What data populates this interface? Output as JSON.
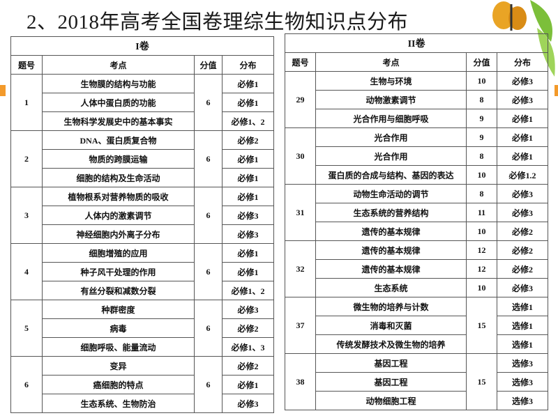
{
  "title": "2、2018年高考全国卷理综生物知识点分布",
  "tables": [
    {
      "title": "I卷",
      "headers": [
        "题号",
        "考点",
        "分值",
        "分布"
      ],
      "groups": [
        {
          "number": "1",
          "score": "6",
          "rows": [
            {
              "topic": "生物膜的结构与功能",
              "distribution": "必修1"
            },
            {
              "topic": "人体中蛋白质的功能",
              "distribution": "必修1"
            },
            {
              "topic": "生物科学发展史中的基本事实",
              "distribution": "必修1、2"
            }
          ]
        },
        {
          "number": "2",
          "score": "6",
          "rows": [
            {
              "topic": "DNA、蛋白质复合物",
              "distribution": "必修2"
            },
            {
              "topic": "物质的跨膜运输",
              "distribution": "必修1"
            },
            {
              "topic": "细胞的结构及生命活动",
              "distribution": "必修1"
            }
          ]
        },
        {
          "number": "3",
          "score": "6",
          "rows": [
            {
              "topic": "植物根系对营养物质的吸收",
              "distribution": "必修1"
            },
            {
              "topic": "人体内的激素调节",
              "distribution": "必修3"
            },
            {
              "topic": "神经细胞内外离子分布",
              "distribution": "必修3"
            }
          ]
        },
        {
          "number": "4",
          "score": "6",
          "rows": [
            {
              "topic": "细胞增殖的应用",
              "distribution": "必修1"
            },
            {
              "topic": "种子风干处理的作用",
              "distribution": "必修1"
            },
            {
              "topic": "有丝分裂和减数分裂",
              "distribution": "必修1、2"
            }
          ]
        },
        {
          "number": "5",
          "score": "6",
          "rows": [
            {
              "topic": "种群密度",
              "distribution": "必修3"
            },
            {
              "topic": "病毒",
              "distribution": "必修2"
            },
            {
              "topic": "细胞呼吸、能量流动",
              "distribution": "必修1、3"
            }
          ]
        },
        {
          "number": "6",
          "score": "6",
          "rows": [
            {
              "topic": "变异",
              "distribution": "必修2"
            },
            {
              "topic": "癌细胞的特点",
              "distribution": "必修1"
            },
            {
              "topic": "生态系统、生物防治",
              "distribution": "必修3"
            }
          ]
        }
      ]
    },
    {
      "title": "II卷",
      "headers": [
        "题号",
        "考点",
        "分值",
        "分布"
      ],
      "groups": [
        {
          "number": "29",
          "rows": [
            {
              "topic": "生物与环境",
              "score": "10",
              "distribution": "必修3"
            },
            {
              "topic": "动物激素调节",
              "score": "8",
              "distribution": "必修3"
            },
            {
              "topic": "光合作用与细胞呼吸",
              "score": "9",
              "distribution": "必修1"
            }
          ]
        },
        {
          "number": "30",
          "rows": [
            {
              "topic": "光合作用",
              "score": "9",
              "distribution": "必修1"
            },
            {
              "topic": "光合作用",
              "score": "8",
              "distribution": "必修1"
            },
            {
              "topic": "蛋白质的合成与结构、基因的表达",
              "score": "10",
              "distribution": "必修1.2"
            }
          ]
        },
        {
          "number": "31",
          "rows": [
            {
              "topic": "动物生命活动的调节",
              "score": "8",
              "distribution": "必修3"
            },
            {
              "topic": "生态系统的营养结构",
              "score": "11",
              "distribution": "必修3"
            },
            {
              "topic": "遗传的基本规律",
              "score": "10",
              "distribution": "必修2"
            }
          ]
        },
        {
          "number": "32",
          "rows": [
            {
              "topic": "遗传的基本规律",
              "score": "12",
              "distribution": "必修2"
            },
            {
              "topic": "遗传的基本规律",
              "score": "12",
              "distribution": "必修2"
            },
            {
              "topic": "生态系统",
              "score": "10",
              "distribution": "必修3"
            }
          ]
        },
        {
          "number": "37",
          "score": "15",
          "rows": [
            {
              "topic": "微生物的培养与计数",
              "distribution": "选修1"
            },
            {
              "topic": "消毒和灭菌",
              "distribution": "选修1"
            },
            {
              "topic": "传统发酵技术及微生物的培养",
              "distribution": "选修1"
            }
          ]
        },
        {
          "number": "38",
          "score": "15",
          "rows": [
            {
              "topic": "基因工程",
              "distribution": "选修3"
            },
            {
              "topic": "基因工程",
              "distribution": "选修3"
            },
            {
              "topic": "动物细胞工程",
              "distribution": "选修3"
            }
          ]
        }
      ]
    }
  ]
}
